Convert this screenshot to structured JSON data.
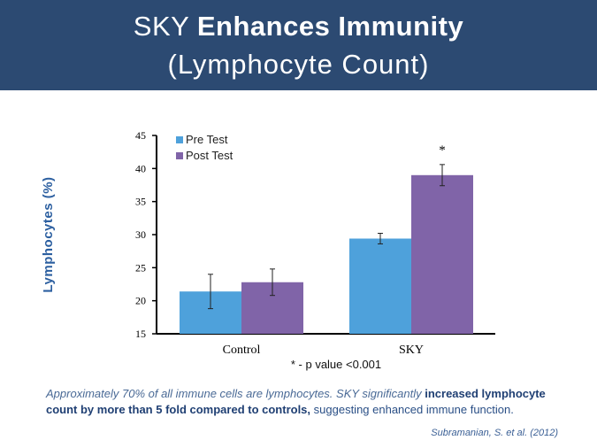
{
  "banner": {
    "title_light": "SKY",
    "title_bold": "Enhances Immunity",
    "subtitle": "(Lymphocyte Count)"
  },
  "chart_data": {
    "type": "bar",
    "categories": [
      "Control",
      "SKY"
    ],
    "series": [
      {
        "name": "Pre Test",
        "color": "#4ea1db",
        "values": [
          21.4,
          29.4
        ],
        "errors": [
          2.6,
          0.8
        ]
      },
      {
        "name": "Post Test",
        "color": "#8064a8",
        "values": [
          22.8,
          39.0
        ],
        "errors": [
          2.0,
          1.6
        ]
      }
    ],
    "ylabel": "Lymphocytes (%)",
    "ylim": [
      15,
      45
    ],
    "yticks": [
      15,
      20,
      25,
      30,
      35,
      40,
      45
    ],
    "legend": "top-left",
    "annotations": [
      {
        "text": "*",
        "category": "SKY",
        "series": "Post Test"
      }
    ],
    "footnote": "* - p value <0.001"
  },
  "caption": {
    "part1": "Approximately 70% of all immune cells are lymphocytes. SKY significantly ",
    "part2": "increased lymphocyte count by more than 5 fold compared to controls,",
    "part3": "  suggesting enhanced immune function."
  },
  "citation": "Subramanian, S. et al. (2012)"
}
